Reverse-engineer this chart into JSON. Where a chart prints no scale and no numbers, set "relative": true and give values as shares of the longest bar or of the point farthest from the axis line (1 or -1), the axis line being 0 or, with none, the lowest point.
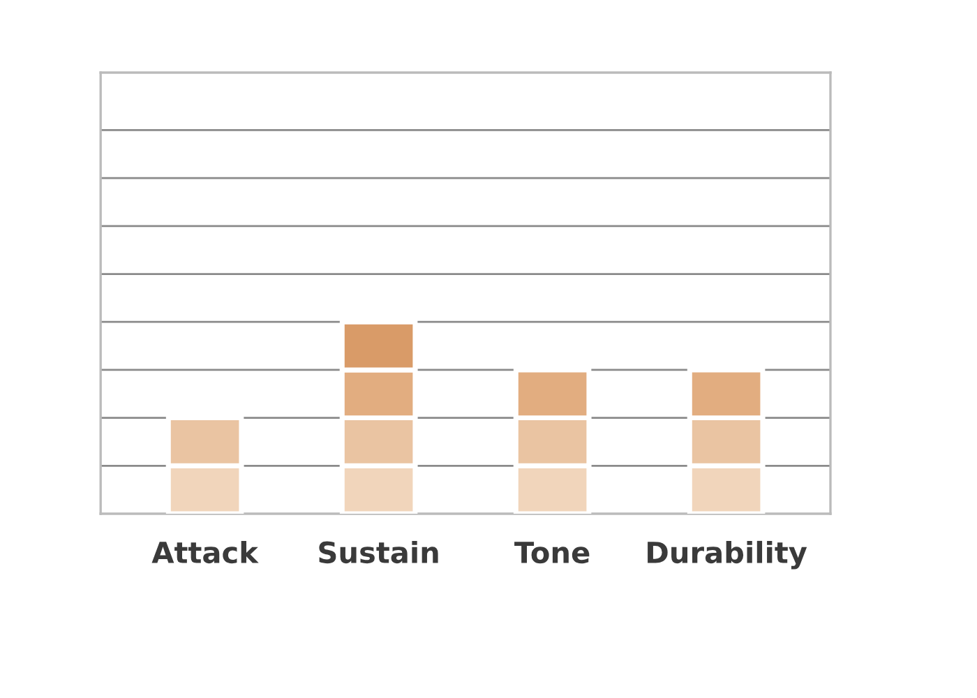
{
  "chart_data": {
    "type": "bar",
    "relative": true,
    "stacked": true,
    "categories": [
      "Attack",
      "Sustain",
      "Tone",
      "Durability"
    ],
    "series": [
      {
        "color": "#f1d5bb",
        "values": [
          0.25,
          0.25,
          0.25,
          0.25
        ]
      },
      {
        "color": "#eac4a2",
        "values": [
          0.25,
          0.25,
          0.25,
          0.25
        ]
      },
      {
        "color": "#e2ad80",
        "values": [
          null,
          0.25,
          0.25,
          0.25
        ]
      },
      {
        "color": "#d99b68",
        "values": [
          null,
          0.25,
          null,
          null
        ]
      }
    ],
    "grid": "y",
    "tick_labels": "x",
    "legend": false
  }
}
